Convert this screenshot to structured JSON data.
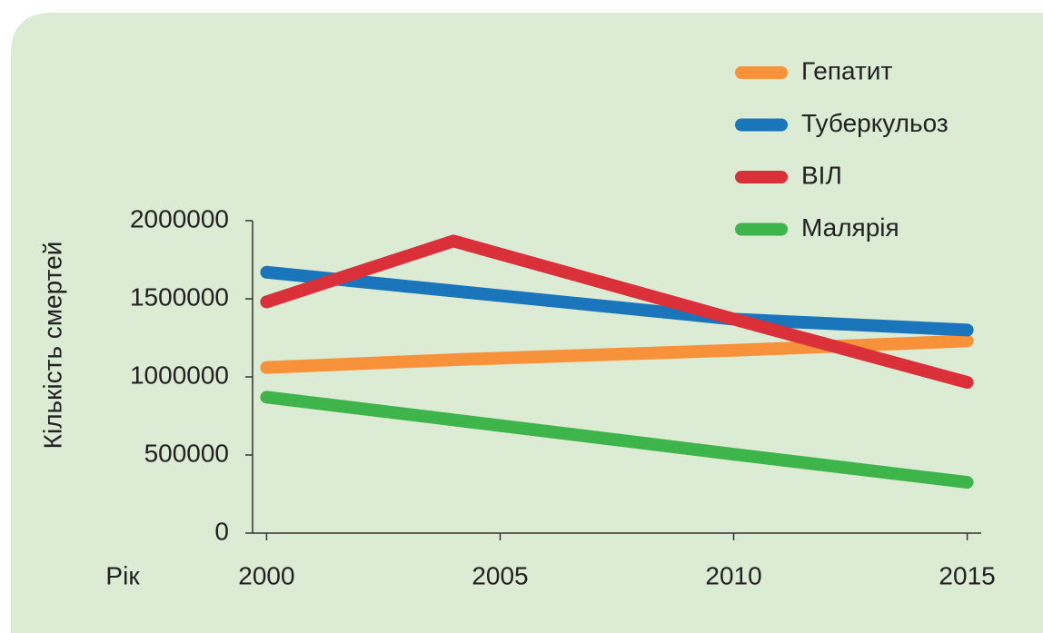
{
  "chart_data": {
    "type": "line",
    "y_label": "Кількість смертей",
    "x_label": "Рік",
    "x": [
      2000,
      2004,
      2010,
      2015
    ],
    "series": [
      {
        "name": "Гепатит",
        "color": "#f7923a",
        "values": [
          1060000,
          1110000,
          1170000,
          1230000
        ]
      },
      {
        "name": "Туберкульоз",
        "color": "#1a75bb",
        "values": [
          1670000,
          1550000,
          1370000,
          1300000
        ]
      },
      {
        "name": "ВІЛ",
        "color": "#d9303a",
        "values": [
          1480000,
          1870000,
          1370000,
          965000
        ]
      },
      {
        "name": "Малярія",
        "color": "#3db54a",
        "values": [
          870000,
          725000,
          505000,
          325000
        ]
      }
    ],
    "xlim": [
      1999.7,
      2015.3
    ],
    "xticks": [
      2000,
      2005,
      2010,
      2015
    ],
    "ylim": [
      0,
      2000000
    ],
    "yticks": [
      0,
      500000,
      1000000,
      1500000,
      2000000
    ],
    "legend": "top-right"
  }
}
